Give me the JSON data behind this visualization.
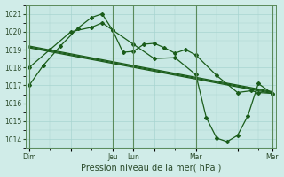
{
  "xlabel": "Pression niveau de la mer( hPa )",
  "bg_color": "#d0ece8",
  "plot_bg_color": "#c8e8e4",
  "grid_color": "#a8d4d0",
  "line_color": "#1a5c1a",
  "vline_color": "#5a8a5a",
  "ylim": [
    1013.5,
    1021.5
  ],
  "yticks": [
    1014,
    1015,
    1016,
    1017,
    1018,
    1019,
    1020,
    1021
  ],
  "xlim": [
    0,
    72
  ],
  "xtick_labels": [
    "Dim",
    "",
    "Jeu",
    "Lun",
    "",
    "Mar",
    "",
    "Mer"
  ],
  "xtick_positions": [
    1,
    13,
    25,
    31,
    37,
    49,
    61,
    71
  ],
  "vlines": [
    1,
    25,
    31,
    49,
    71
  ],
  "series1_jagged": {
    "x": [
      1,
      5,
      10,
      15,
      19,
      22,
      25,
      28,
      31,
      34,
      37,
      40,
      43,
      46,
      49,
      55,
      61,
      65,
      67,
      71
    ],
    "y": [
      1017.0,
      1018.1,
      1019.2,
      1020.2,
      1020.8,
      1021.0,
      1020.1,
      1018.85,
      1018.9,
      1019.3,
      1019.35,
      1019.1,
      1018.8,
      1019.0,
      1018.7,
      1017.55,
      1016.6,
      1016.7,
      1016.6,
      1016.55
    ]
  },
  "series2_straight": {
    "x": [
      1,
      71
    ],
    "y": [
      1019.1,
      1016.55
    ]
  },
  "series3_straight": {
    "x": [
      1,
      71
    ],
    "y": [
      1019.15,
      1016.6
    ]
  },
  "series4_straight": {
    "x": [
      1,
      71
    ],
    "y": [
      1019.2,
      1016.65
    ]
  },
  "series5_dip": {
    "x": [
      1,
      7,
      13,
      19,
      22,
      25,
      31,
      37,
      43,
      49,
      52,
      55,
      58,
      61,
      64,
      67,
      71
    ],
    "y": [
      1018.0,
      1019.0,
      1020.0,
      1020.25,
      1020.5,
      1020.1,
      1019.3,
      1018.5,
      1018.55,
      1017.6,
      1015.2,
      1014.05,
      1013.85,
      1014.2,
      1015.3,
      1017.1,
      1016.55
    ]
  }
}
